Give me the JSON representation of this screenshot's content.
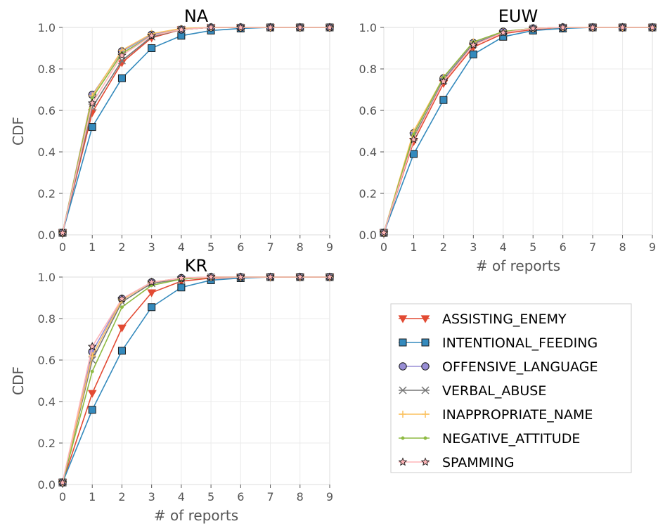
{
  "chart_data": [
    {
      "type": "line",
      "title": "NA",
      "xlabel": "",
      "ylabel": "CDF",
      "x": [
        0,
        1,
        2,
        3,
        4,
        5,
        6,
        7,
        8,
        9
      ],
      "xlim": [
        0,
        9
      ],
      "ylim": [
        0,
        1
      ],
      "xticks": [
        "0",
        "1",
        "2",
        "3",
        "4",
        "5",
        "6",
        "7",
        "8",
        "9"
      ],
      "yticks": [
        "0.0",
        "0.2",
        "0.4",
        "0.6",
        "0.8",
        "1.0"
      ],
      "grid": true,
      "series": [
        {
          "name": "ASSISTING_ENEMY",
          "values": [
            0.01,
            0.59,
            0.83,
            0.95,
            0.99,
            1.0,
            1.0,
            1.0,
            1.0,
            1.0
          ]
        },
        {
          "name": "INTENTIONAL_FEEDING",
          "values": [
            0.01,
            0.52,
            0.755,
            0.9,
            0.96,
            0.985,
            0.995,
            1.0,
            1.0,
            1.0
          ]
        },
        {
          "name": "OFFENSIVE_LANGUAGE",
          "values": [
            0.01,
            0.675,
            0.885,
            0.965,
            0.99,
            1.0,
            1.0,
            1.0,
            1.0,
            1.0
          ]
        },
        {
          "name": "VERBAL_ABUSE",
          "values": [
            0.01,
            0.615,
            0.84,
            0.955,
            0.99,
            1.0,
            1.0,
            1.0,
            1.0,
            1.0
          ]
        },
        {
          "name": "INAPPROPRIATE_NAME",
          "values": [
            0.01,
            0.67,
            0.89,
            0.97,
            0.995,
            1.0,
            1.0,
            1.0,
            1.0,
            1.0
          ]
        },
        {
          "name": "NEGATIVE_ATTITUDE",
          "values": [
            0.01,
            0.66,
            0.875,
            0.96,
            0.99,
            1.0,
            1.0,
            1.0,
            1.0,
            1.0
          ]
        },
        {
          "name": "SPAMMING",
          "values": [
            0.01,
            0.635,
            0.865,
            0.96,
            0.99,
            1.0,
            1.0,
            1.0,
            1.0,
            1.0
          ]
        }
      ]
    },
    {
      "type": "line",
      "title": "EUW",
      "xlabel": "# of reports",
      "ylabel": "",
      "x": [
        0,
        1,
        2,
        3,
        4,
        5,
        6,
        7,
        8,
        9
      ],
      "xlim": [
        0,
        9
      ],
      "ylim": [
        0,
        1
      ],
      "xticks": [
        "0",
        "1",
        "2",
        "3",
        "4",
        "5",
        "6",
        "7",
        "8",
        "9"
      ],
      "yticks": [
        "0.0",
        "0.2",
        "0.4",
        "0.6",
        "0.8",
        "1.0"
      ],
      "grid": true,
      "series": [
        {
          "name": "ASSISTING_ENEMY",
          "values": [
            0.01,
            0.45,
            0.73,
            0.905,
            0.97,
            0.99,
            1.0,
            1.0,
            1.0,
            1.0
          ]
        },
        {
          "name": "INTENTIONAL_FEEDING",
          "values": [
            0.01,
            0.39,
            0.65,
            0.87,
            0.955,
            0.985,
            0.995,
            1.0,
            1.0,
            1.0
          ]
        },
        {
          "name": "OFFENSIVE_LANGUAGE",
          "values": [
            0.01,
            0.49,
            0.755,
            0.925,
            0.98,
            0.995,
            1.0,
            1.0,
            1.0,
            1.0
          ]
        },
        {
          "name": "VERBAL_ABUSE",
          "values": [
            0.01,
            0.47,
            0.745,
            0.92,
            0.975,
            0.995,
            1.0,
            1.0,
            1.0,
            1.0
          ]
        },
        {
          "name": "INAPPROPRIATE_NAME",
          "values": [
            0.01,
            0.5,
            0.76,
            0.93,
            0.98,
            0.995,
            1.0,
            1.0,
            1.0,
            1.0
          ]
        },
        {
          "name": "NEGATIVE_ATTITUDE",
          "values": [
            0.01,
            0.485,
            0.76,
            0.93,
            0.98,
            0.995,
            1.0,
            1.0,
            1.0,
            1.0
          ]
        },
        {
          "name": "SPAMMING",
          "values": [
            0.01,
            0.46,
            0.74,
            0.915,
            0.975,
            0.995,
            1.0,
            1.0,
            1.0,
            1.0
          ]
        }
      ]
    },
    {
      "type": "line",
      "title": "KR",
      "xlabel": "# of reports",
      "ylabel": "CDF",
      "x": [
        0,
        1,
        2,
        3,
        4,
        5,
        6,
        7,
        8,
        9
      ],
      "xlim": [
        0,
        9
      ],
      "ylim": [
        0,
        1
      ],
      "xticks": [
        "0",
        "1",
        "2",
        "3",
        "4",
        "5",
        "6",
        "7",
        "8",
        "9"
      ],
      "yticks": [
        "0.0",
        "0.2",
        "0.4",
        "0.6",
        "0.8",
        "1.0"
      ],
      "grid": true,
      "series": [
        {
          "name": "ASSISTING_ENEMY",
          "values": [
            0.01,
            0.44,
            0.755,
            0.925,
            0.98,
            0.995,
            1.0,
            1.0,
            1.0,
            1.0
          ]
        },
        {
          "name": "INTENTIONAL_FEEDING",
          "values": [
            0.01,
            0.36,
            0.645,
            0.855,
            0.95,
            0.985,
            0.995,
            1.0,
            1.0,
            1.0
          ]
        },
        {
          "name": "OFFENSIVE_LANGUAGE",
          "values": [
            0.01,
            0.64,
            0.895,
            0.975,
            0.995,
            1.0,
            1.0,
            1.0,
            1.0,
            1.0
          ]
        },
        {
          "name": "VERBAL_ABUSE",
          "values": [
            0.01,
            0.6,
            0.88,
            0.97,
            0.99,
            1.0,
            1.0,
            1.0,
            1.0,
            1.0
          ]
        },
        {
          "name": "INAPPROPRIATE_NAME",
          "values": [
            0.01,
            0.62,
            0.89,
            0.975,
            0.995,
            1.0,
            1.0,
            1.0,
            1.0,
            1.0
          ]
        },
        {
          "name": "NEGATIVE_ATTITUDE",
          "values": [
            0.01,
            0.545,
            0.855,
            0.96,
            0.99,
            1.0,
            1.0,
            1.0,
            1.0,
            1.0
          ]
        },
        {
          "name": "SPAMMING",
          "values": [
            0.01,
            0.665,
            0.895,
            0.975,
            0.995,
            1.0,
            1.0,
            1.0,
            1.0,
            1.0
          ]
        }
      ]
    }
  ],
  "legend": {
    "placement": "lower-right",
    "entries": [
      {
        "label": "ASSISTING_ENEMY",
        "color": "#e24a33",
        "marker": "triangle-down-icon"
      },
      {
        "label": "INTENTIONAL_FEEDING",
        "color": "#348abd",
        "marker": "square-icon"
      },
      {
        "label": "OFFENSIVE_LANGUAGE",
        "color": "#988ed5",
        "marker": "circle-icon"
      },
      {
        "label": "VERBAL_ABUSE",
        "color": "#777777",
        "marker": "x-icon"
      },
      {
        "label": "INAPPROPRIATE_NAME",
        "color": "#fbc15e",
        "marker": "plus-icon"
      },
      {
        "label": "NEGATIVE_ATTITUDE",
        "color": "#8eba42",
        "marker": "dot-icon"
      },
      {
        "label": "SPAMMING",
        "color": "#ffb5b8",
        "marker": "star-icon"
      }
    ]
  }
}
